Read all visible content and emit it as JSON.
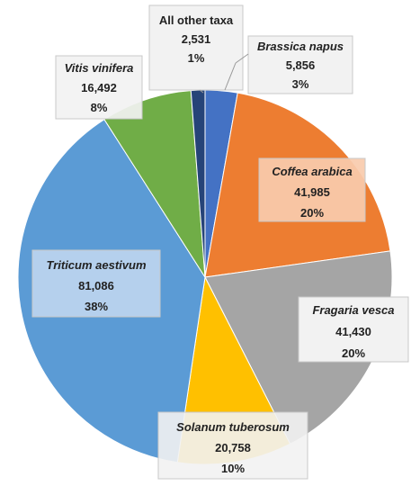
{
  "chart_data": {
    "type": "pie",
    "start_angle_deg": 0,
    "direction": "clockwise",
    "slices": [
      {
        "name": "Brassica napus",
        "value": 5856,
        "percent": "3%",
        "value_label": "5,856",
        "color": "#4472c4"
      },
      {
        "name": "Coffea arabica",
        "value": 41985,
        "percent": "20%",
        "value_label": "41,985",
        "color": "#ed7d31"
      },
      {
        "name": "Fragaria vesca",
        "value": 41430,
        "percent": "20%",
        "value_label": "41,430",
        "color": "#a5a5a5"
      },
      {
        "name": "Solanum tuberosum",
        "value": 20758,
        "percent": "10%",
        "value_label": "20,758",
        "color": "#ffc000"
      },
      {
        "name": "Triticum aestivum",
        "value": 81086,
        "percent": "38%",
        "value_label": "81,086",
        "color": "#5b9bd5"
      },
      {
        "name": "Vitis vinifera",
        "value": 16492,
        "percent": "8%",
        "value_label": "16,492",
        "color": "#70ad47"
      },
      {
        "name": "All other taxa",
        "value": 2531,
        "percent": "1%",
        "value_label": "2,531",
        "color": "#264478"
      }
    ]
  }
}
